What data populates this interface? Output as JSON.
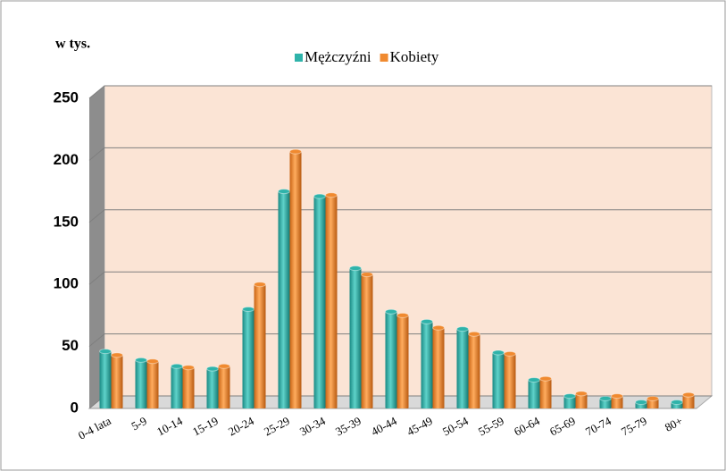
{
  "chart_data": {
    "type": "bar",
    "axis_label": "w tys.",
    "categories": [
      "0-4 lata",
      "5-9",
      "10-14",
      "15-19",
      "20-24",
      "25-29",
      "30-34",
      "35-39",
      "40-44",
      "45-49",
      "50-54",
      "55-59",
      "60-64",
      "65-69",
      "70-74",
      "75-79",
      "80+"
    ],
    "series": [
      {
        "name": "Mężczyźni",
        "color": "#2fb3aa",
        "values": [
          46,
          39,
          34,
          32,
          80,
          175,
          171,
          113,
          78,
          70,
          64,
          45,
          23,
          10,
          8,
          5,
          5
        ]
      },
      {
        "name": "Kobiety",
        "color": "#f08a30",
        "values": [
          43,
          38,
          33,
          34,
          100,
          207,
          172,
          108,
          75,
          65,
          60,
          44,
          24,
          12,
          10,
          8,
          11
        ]
      }
    ],
    "ylim": [
      0,
      250
    ],
    "yticks": [
      0,
      50,
      100,
      150,
      200,
      250
    ],
    "grid": true,
    "legend": "top"
  }
}
